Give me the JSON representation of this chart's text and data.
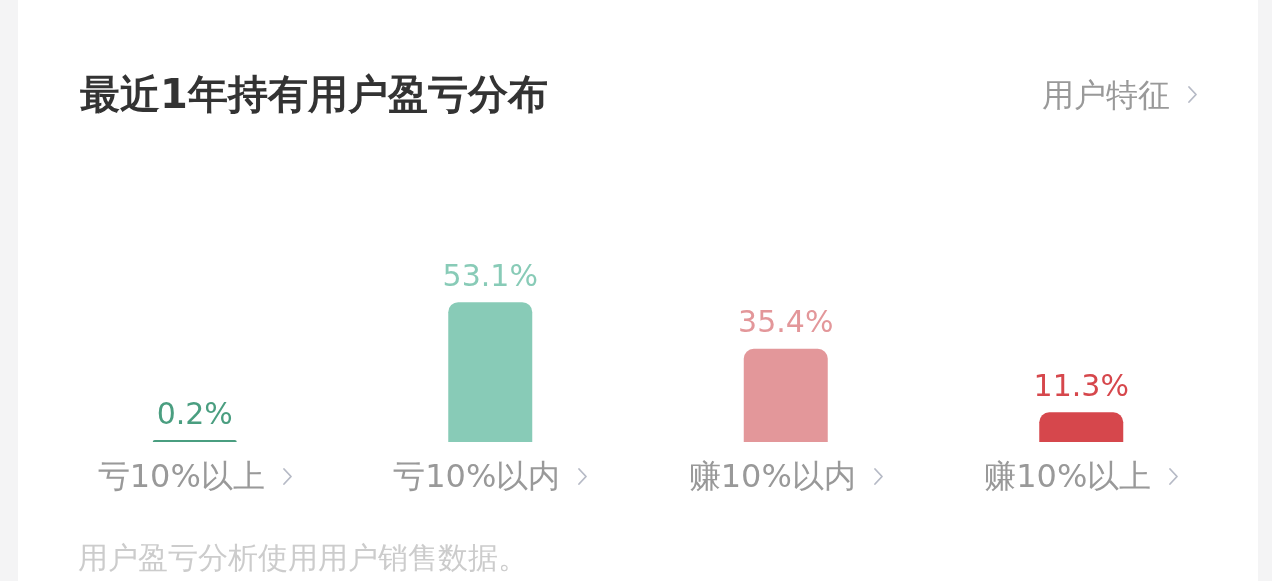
{
  "chart_data": {
    "type": "bar",
    "title": "最近1年持有用户盈亏分布",
    "categories": [
      "亏10%以上",
      "亏10%以内",
      "赚10%以内",
      "赚10%以上"
    ],
    "values": [
      0.2,
      53.1,
      35.4,
      11.3
    ],
    "value_labels": [
      "0.2%",
      "53.1%",
      "35.4%",
      "11.3%"
    ],
    "colors": [
      "#4a9e80",
      "#88cbb7",
      "#e3979a",
      "#d6474c"
    ],
    "annotations": [
      "用户特征",
      "用户盈亏分析使用用户销售数据。"
    ]
  }
}
